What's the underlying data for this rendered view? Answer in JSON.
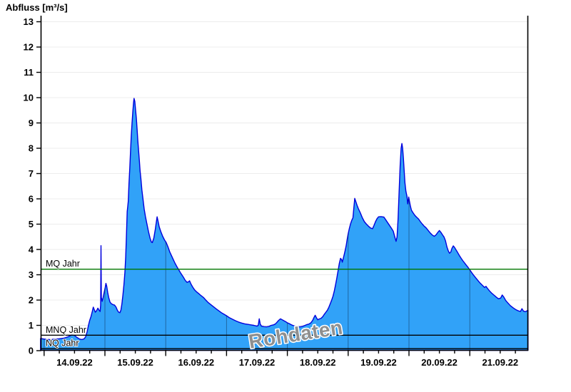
{
  "title": "Abfluss [m³/s]",
  "watermark": "Rohdaten",
  "colors": {
    "fill": "#31a2f8",
    "stroke": "#0000dd",
    "gridline": "#ececec",
    "day_separator": "rgba(10,30,60,0.45)",
    "axis": "#000000",
    "mq_line": "#007700",
    "ref_line_black": "#000000",
    "watermark": "#8f8f8f",
    "label": "#000000"
  },
  "chart_data": {
    "type": "area",
    "title": "Abfluss [m³/s]",
    "xlabel": "",
    "ylabel": "Abfluss [m³/s]",
    "ylim": [
      0,
      13.25
    ],
    "yticks": [
      0,
      1,
      2,
      3,
      4,
      5,
      6,
      7,
      8,
      9,
      10,
      11,
      12,
      13
    ],
    "categories": [
      "14.09.22",
      "15.09.22",
      "16.09.22",
      "17.09.22",
      "18.09.22",
      "19.09.22",
      "20.09.22",
      "21.09.22"
    ],
    "x_unit": "hours since 14.09.22 00:00",
    "x_range_hours": [
      -1.4,
      191
    ],
    "minor_tick_hours": 6,
    "grid": "horizontal-light, vertical day separators inside fill",
    "legend_position": "none",
    "reference_lines": [
      {
        "label": "MQ Jahr",
        "value": 3.22,
        "color": "#007700"
      },
      {
        "label": "MNQ Jahr",
        "value": 0.61,
        "color": "#000000"
      },
      {
        "label": "NQ Jahr",
        "value": 0.08,
        "color": "#000000"
      }
    ],
    "series": [
      {
        "name": "Abfluss Rohdaten",
        "points": [
          [
            -1.4,
            0.48
          ],
          [
            0,
            0.46
          ],
          [
            2,
            0.44
          ],
          [
            4,
            0.45
          ],
          [
            6,
            0.47
          ],
          [
            8,
            0.5
          ],
          [
            9.5,
            0.55
          ],
          [
            11,
            0.62
          ],
          [
            12,
            0.6
          ],
          [
            13,
            0.52
          ],
          [
            14,
            0.46
          ],
          [
            15,
            0.44
          ],
          [
            15.8,
            0.47
          ],
          [
            16.4,
            0.55
          ],
          [
            17,
            0.75
          ],
          [
            17.5,
            1
          ],
          [
            18,
            1.2
          ],
          [
            18.5,
            1.35
          ],
          [
            19,
            1.55
          ],
          [
            19.4,
            1.72
          ],
          [
            19.8,
            1.62
          ],
          [
            20.2,
            1.52
          ],
          [
            20.7,
            1.58
          ],
          [
            21.2,
            1.68
          ],
          [
            21.7,
            1.6
          ],
          [
            22.1,
            1.55
          ],
          [
            22.3,
            1.8
          ],
          [
            22.45,
            4.15
          ],
          [
            22.6,
            2.1
          ],
          [
            22.9,
            1.95
          ],
          [
            23.3,
            2.1
          ],
          [
            23.7,
            2.3
          ],
          [
            24.1,
            2.5
          ],
          [
            24.4,
            2.66
          ],
          [
            24.7,
            2.55
          ],
          [
            25.1,
            2.3
          ],
          [
            25.5,
            2.1
          ],
          [
            26,
            1.92
          ],
          [
            26.6,
            1.85
          ],
          [
            27.2,
            1.82
          ],
          [
            27.8,
            1.8
          ],
          [
            28.4,
            1.72
          ],
          [
            28.9,
            1.6
          ],
          [
            29.4,
            1.52
          ],
          [
            29.9,
            1.5
          ],
          [
            30.3,
            1.6
          ],
          [
            30.7,
            1.85
          ],
          [
            31.1,
            2.2
          ],
          [
            31.5,
            2.6
          ],
          [
            31.9,
            3.1
          ],
          [
            32.2,
            3.7
          ],
          [
            32.5,
            4.6
          ],
          [
            32.8,
            5.5
          ],
          [
            33,
            5.68
          ],
          [
            33.2,
            5.9
          ],
          [
            33.5,
            6.6
          ],
          [
            33.8,
            7.2
          ],
          [
            34.1,
            7.9
          ],
          [
            34.4,
            8.5
          ],
          [
            34.7,
            9
          ],
          [
            35,
            9.45
          ],
          [
            35.3,
            9.8
          ],
          [
            35.5,
            9.97
          ],
          [
            35.8,
            9.85
          ],
          [
            36.1,
            9.5
          ],
          [
            36.4,
            9.2
          ],
          [
            36.7,
            8.75
          ],
          [
            37,
            8.3
          ],
          [
            37.3,
            7.9
          ],
          [
            37.6,
            7.5
          ],
          [
            37.9,
            7.1
          ],
          [
            38.2,
            6.8
          ],
          [
            38.6,
            6.35
          ],
          [
            39,
            6
          ],
          [
            39.5,
            5.6
          ],
          [
            40,
            5.3
          ],
          [
            40.6,
            5
          ],
          [
            41.2,
            4.7
          ],
          [
            41.8,
            4.45
          ],
          [
            42.3,
            4.3
          ],
          [
            42.7,
            4.27
          ],
          [
            43.3,
            4.45
          ],
          [
            43.9,
            4.8
          ],
          [
            44.3,
            5.1
          ],
          [
            44.6,
            5.29
          ],
          [
            45,
            5.1
          ],
          [
            45.4,
            4.9
          ],
          [
            46,
            4.72
          ],
          [
            46.8,
            4.52
          ],
          [
            47.5,
            4.38
          ],
          [
            48.2,
            4.27
          ],
          [
            48.9,
            4.1
          ],
          [
            49.6,
            3.9
          ],
          [
            50.3,
            3.75
          ],
          [
            51,
            3.6
          ],
          [
            51.7,
            3.45
          ],
          [
            52.4,
            3.32
          ],
          [
            53.1,
            3.2
          ],
          [
            54,
            3.05
          ],
          [
            55,
            2.9
          ],
          [
            55.7,
            2.78
          ],
          [
            56.4,
            2.7
          ],
          [
            57,
            2.72
          ],
          [
            57.4,
            2.76
          ],
          [
            57.9,
            2.65
          ],
          [
            58.6,
            2.52
          ],
          [
            59.4,
            2.4
          ],
          [
            60.1,
            2.33
          ],
          [
            61,
            2.26
          ],
          [
            61.9,
            2.18
          ],
          [
            62.9,
            2.1
          ],
          [
            63.8,
            2
          ],
          [
            64.8,
            1.9
          ],
          [
            65.8,
            1.82
          ],
          [
            66.8,
            1.74
          ],
          [
            67.8,
            1.66
          ],
          [
            68.9,
            1.58
          ],
          [
            70,
            1.5
          ],
          [
            71,
            1.44
          ],
          [
            72,
            1.38
          ],
          [
            73.2,
            1.3
          ],
          [
            74.4,
            1.24
          ],
          [
            75.6,
            1.18
          ],
          [
            76.8,
            1.13
          ],
          [
            78,
            1.09
          ],
          [
            79.2,
            1.06
          ],
          [
            80.4,
            1.04
          ],
          [
            81.6,
            1.02
          ],
          [
            82.8,
            1
          ],
          [
            84,
            0.97
          ],
          [
            84.5,
            1
          ],
          [
            84.9,
            1.26
          ],
          [
            85.3,
            1.05
          ],
          [
            85.8,
            0.97
          ],
          [
            86.8,
            0.95
          ],
          [
            87.8,
            0.94
          ],
          [
            88.8,
            0.96
          ],
          [
            89.6,
            1
          ],
          [
            90.5,
            1.02
          ],
          [
            91.2,
            1.05
          ],
          [
            91.9,
            1.12
          ],
          [
            92.6,
            1.2
          ],
          [
            93.3,
            1.26
          ],
          [
            94,
            1.22
          ],
          [
            94.7,
            1.18
          ],
          [
            95.3,
            1.15
          ],
          [
            96,
            1.1
          ],
          [
            96.7,
            1.07
          ],
          [
            97.4,
            1.03
          ],
          [
            98.1,
            1
          ],
          [
            99,
            0.97
          ],
          [
            100,
            0.95
          ],
          [
            101,
            0.94
          ],
          [
            102,
            0.96
          ],
          [
            103,
            1
          ],
          [
            103.7,
            1.03
          ],
          [
            104.5,
            1.05
          ],
          [
            105.3,
            1.1
          ],
          [
            106,
            1.2
          ],
          [
            106.6,
            1.33
          ],
          [
            107,
            1.4
          ],
          [
            107.5,
            1.3
          ],
          [
            108,
            1.22
          ],
          [
            108.5,
            1.25
          ],
          [
            109.3,
            1.28
          ],
          [
            110,
            1.35
          ],
          [
            110.6,
            1.44
          ],
          [
            111.2,
            1.52
          ],
          [
            111.8,
            1.6
          ],
          [
            112.4,
            1.72
          ],
          [
            113,
            1.87
          ],
          [
            113.5,
            2
          ],
          [
            114,
            2.15
          ],
          [
            114.5,
            2.35
          ],
          [
            115,
            2.6
          ],
          [
            115.5,
            2.85
          ],
          [
            116,
            3.15
          ],
          [
            116.5,
            3.45
          ],
          [
            117,
            3.65
          ],
          [
            117.4,
            3.6
          ],
          [
            117.7,
            3.5
          ],
          [
            118,
            3.62
          ],
          [
            118.4,
            3.78
          ],
          [
            118.8,
            3.95
          ],
          [
            119.2,
            4.15
          ],
          [
            119.6,
            4.4
          ],
          [
            120,
            4.62
          ],
          [
            120.4,
            4.8
          ],
          [
            120.9,
            5
          ],
          [
            121.4,
            5.15
          ],
          [
            121.9,
            5.25
          ],
          [
            122.2,
            5.6
          ],
          [
            122.6,
            6.02
          ],
          [
            123,
            5.9
          ],
          [
            123.5,
            5.75
          ],
          [
            124,
            5.62
          ],
          [
            124.8,
            5.45
          ],
          [
            125.6,
            5.25
          ],
          [
            126.4,
            5.1
          ],
          [
            127.2,
            5
          ],
          [
            128,
            4.92
          ],
          [
            128.8,
            4.85
          ],
          [
            129.6,
            4.82
          ],
          [
            130.2,
            4.95
          ],
          [
            130.8,
            5.1
          ],
          [
            131.4,
            5.22
          ],
          [
            132,
            5.29
          ],
          [
            133,
            5.3
          ],
          [
            134.1,
            5.28
          ],
          [
            135,
            5.15
          ],
          [
            136.1,
            4.98
          ],
          [
            137,
            4.85
          ],
          [
            137.8,
            4.72
          ],
          [
            138.4,
            4.5
          ],
          [
            138.9,
            4.32
          ],
          [
            139.3,
            4.5
          ],
          [
            139.7,
            5.2
          ],
          [
            140.1,
            6.3
          ],
          [
            140.5,
            7.3
          ],
          [
            140.9,
            8
          ],
          [
            141.2,
            8.19
          ],
          [
            141.5,
            8
          ],
          [
            141.8,
            7.6
          ],
          [
            142.1,
            7.1
          ],
          [
            142.4,
            6.65
          ],
          [
            142.8,
            6.3
          ],
          [
            143.2,
            6.1
          ],
          [
            143.5,
            5.8
          ],
          [
            143.7,
            5.9
          ],
          [
            143.9,
            6.07
          ],
          [
            144.2,
            5.9
          ],
          [
            144.6,
            5.7
          ],
          [
            145,
            5.55
          ],
          [
            145.6,
            5.45
          ],
          [
            146.3,
            5.35
          ],
          [
            147,
            5.28
          ],
          [
            147.8,
            5.2
          ],
          [
            148.5,
            5.1
          ],
          [
            149.3,
            5
          ],
          [
            150,
            4.92
          ],
          [
            150.8,
            4.85
          ],
          [
            151.6,
            4.75
          ],
          [
            152.4,
            4.65
          ],
          [
            153.2,
            4.57
          ],
          [
            154,
            4.52
          ],
          [
            154.7,
            4.58
          ],
          [
            155.4,
            4.68
          ],
          [
            156,
            4.75
          ],
          [
            156.6,
            4.68
          ],
          [
            157.2,
            4.58
          ],
          [
            157.8,
            4.5
          ],
          [
            158.4,
            4.35
          ],
          [
            159,
            4.1
          ],
          [
            159.5,
            3.95
          ],
          [
            160,
            3.85
          ],
          [
            160.5,
            3.9
          ],
          [
            161,
            4.05
          ],
          [
            161.5,
            4.14
          ],
          [
            162,
            4.08
          ],
          [
            162.6,
            3.98
          ],
          [
            163.2,
            3.88
          ],
          [
            163.9,
            3.76
          ],
          [
            164.6,
            3.65
          ],
          [
            165.3,
            3.55
          ],
          [
            166,
            3.46
          ],
          [
            166.7,
            3.37
          ],
          [
            167.4,
            3.28
          ],
          [
            168.1,
            3.18
          ],
          [
            169,
            3.05
          ],
          [
            170,
            2.92
          ],
          [
            171,
            2.8
          ],
          [
            172,
            2.68
          ],
          [
            173,
            2.58
          ],
          [
            173.8,
            2.5
          ],
          [
            174.4,
            2.54
          ],
          [
            175,
            2.46
          ],
          [
            175.8,
            2.36
          ],
          [
            176.6,
            2.28
          ],
          [
            177.5,
            2.2
          ],
          [
            178.4,
            2.12
          ],
          [
            179.3,
            2.05
          ],
          [
            180.2,
            2.08
          ],
          [
            180.8,
            2.2
          ],
          [
            181.4,
            2.12
          ],
          [
            182.2,
            1.98
          ],
          [
            183.1,
            1.88
          ],
          [
            184,
            1.78
          ],
          [
            185,
            1.7
          ],
          [
            186,
            1.63
          ],
          [
            187,
            1.58
          ],
          [
            188,
            1.55
          ],
          [
            188.6,
            1.66
          ],
          [
            189.2,
            1.56
          ],
          [
            190,
            1.54
          ],
          [
            191,
            1.6
          ]
        ]
      }
    ]
  }
}
